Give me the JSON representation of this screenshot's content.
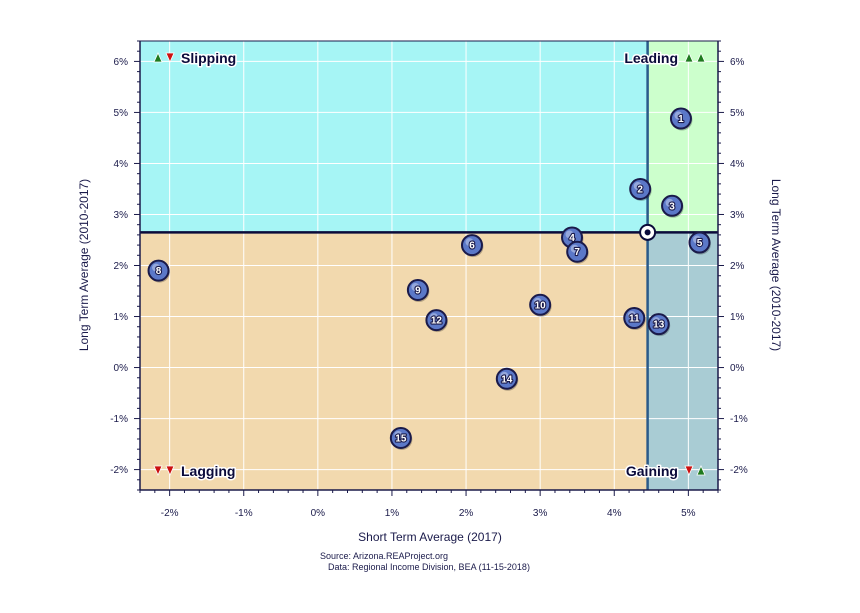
{
  "chart_data": {
    "type": "scatter",
    "xlabel": "Short Term Average (2017)",
    "ylabel": "Long Term Average (2010-2017)",
    "ylabel_right": "Long Term Average (2010-2017)",
    "xlim": [
      -2.4,
      5.4
    ],
    "ylim": [
      -2.4,
      6.4
    ],
    "x_ticks": [
      -2,
      -1,
      0,
      1,
      2,
      3,
      4,
      5
    ],
    "x_tick_labels": [
      "-2%",
      "-1%",
      "0%",
      "1%",
      "2%",
      "3%",
      "4%",
      "5%"
    ],
    "y_ticks": [
      -2,
      -1,
      0,
      1,
      2,
      3,
      4,
      5,
      6
    ],
    "y_tick_labels": [
      "-2%",
      "-1%",
      "0%",
      "1%",
      "2%",
      "3%",
      "4%",
      "5%",
      "6%"
    ],
    "grid": true,
    "reference_point": {
      "x": 4.45,
      "y": 2.65
    },
    "quadrants": {
      "top_left": {
        "label": "Slipping",
        "color": "#a6f5f5",
        "arrows": [
          "up-green",
          "down-red"
        ]
      },
      "top_right": {
        "label": "Leading",
        "color": "#ccffcc",
        "arrows": [
          "up-green",
          "up-green"
        ]
      },
      "bottom_left": {
        "label": "Lagging",
        "color": "#f2d9ae",
        "arrows": [
          "down-red",
          "down-red"
        ]
      },
      "bottom_right": {
        "label": "Gaining",
        "color": "#a9ccd4",
        "arrows": [
          "down-red",
          "up-green"
        ]
      }
    },
    "points": [
      {
        "label": "1",
        "x": 4.9,
        "y": 4.88
      },
      {
        "label": "2",
        "x": 4.35,
        "y": 3.5
      },
      {
        "label": "3",
        "x": 4.78,
        "y": 3.17
      },
      {
        "label": "4",
        "x": 3.43,
        "y": 2.55
      },
      {
        "label": "5",
        "x": 5.15,
        "y": 2.45
      },
      {
        "label": "6",
        "x": 2.08,
        "y": 2.4
      },
      {
        "label": "7",
        "x": 3.5,
        "y": 2.27
      },
      {
        "label": "8",
        "x": -2.15,
        "y": 1.9
      },
      {
        "label": "9",
        "x": 1.35,
        "y": 1.52
      },
      {
        "label": "10",
        "x": 3.0,
        "y": 1.23
      },
      {
        "label": "11",
        "x": 4.27,
        "y": 0.97
      },
      {
        "label": "12",
        "x": 1.6,
        "y": 0.93
      },
      {
        "label": "13",
        "x": 4.6,
        "y": 0.85
      },
      {
        "label": "14",
        "x": 2.55,
        "y": -0.22
      },
      {
        "label": "15",
        "x": 1.12,
        "y": -1.38
      }
    ],
    "colors": {
      "point_fill": "#5b78c8",
      "point_stroke": "#1a1a4a",
      "divider": "#0a0a3a",
      "divider_vertical": "#2a5a8a",
      "up_arrow": "#1e7a1e",
      "down_arrow": "#cc1111"
    }
  },
  "source": {
    "line1": "Source: Arizona.REAProject.org",
    "line2": "Data: Regional Income Division, BEA (11-15-2018)"
  }
}
